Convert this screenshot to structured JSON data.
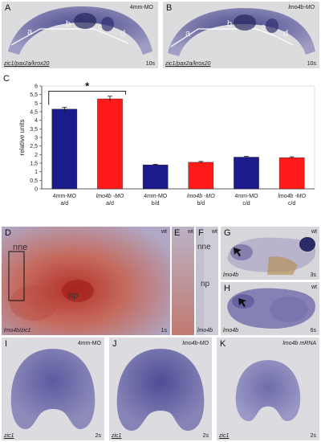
{
  "panels": {
    "A": {
      "letter": "A",
      "condition": "4mm-MO",
      "stain": "zic1/pax2a/krox20",
      "stage": "10s",
      "segments": [
        "a",
        "b",
        "c",
        "d"
      ]
    },
    "B": {
      "letter": "B",
      "condition": "lmo4b-MO",
      "stain": "zic1/pax2a/krox20",
      "stage": "10s",
      "segments": [
        "a",
        "b",
        "c",
        "d"
      ]
    },
    "C": {
      "letter": "C",
      "significance": "*"
    },
    "D": {
      "letter": "D",
      "genotype": "wt",
      "label_nne": "nne",
      "label_np": "np",
      "stain": "lmo4b/zic1",
      "stage": "1s"
    },
    "E": {
      "letter": "E",
      "genotype": "wt"
    },
    "F": {
      "letter": "F",
      "genotype": "wt",
      "label_nne": "nne",
      "label_np": "np",
      "stain": "lmo4b"
    },
    "G": {
      "letter": "G",
      "genotype": "wt",
      "stain": "lmo4b",
      "stage": "3s"
    },
    "H": {
      "letter": "H",
      "genotype": "wt",
      "stain": "lmo4b",
      "stage": "6s"
    },
    "I": {
      "letter": "I",
      "condition": "4mm-MO",
      "stain": "zic1",
      "stage": "2s"
    },
    "J": {
      "letter": "J",
      "condition": "lmo4b-MO",
      "stain": "zic1",
      "stage": "2s"
    },
    "K": {
      "letter": "K",
      "condition": "lmo4b mRNA",
      "stain": "zic1",
      "stage": "2s"
    }
  },
  "chart_data": {
    "type": "bar",
    "ylabel": "relative units",
    "ylim": [
      0,
      6
    ],
    "yticks": [
      "0",
      "0,5",
      "1",
      "1,5",
      "2",
      "2,5",
      "3",
      "3,5",
      "4",
      "4,5",
      "5",
      "5,5",
      "6"
    ],
    "categories": [
      {
        "morpholino": "4mm-MO",
        "ratio": "a/d"
      },
      {
        "morpholino": "lmo4b  -MO",
        "ratio": "a/d"
      },
      {
        "morpholino": "4mm-MO",
        "ratio": "b/d"
      },
      {
        "morpholino": "lmo4b  -MO",
        "ratio": "b/d"
      },
      {
        "morpholino": "4mm-MO",
        "ratio": "c/d"
      },
      {
        "morpholino": "lmo4b  -MO",
        "ratio": "c/d"
      }
    ],
    "values": [
      4.65,
      5.25,
      1.4,
      1.55,
      1.85,
      1.82
    ],
    "errors": [
      0.1,
      0.15,
      0.03,
      0.05,
      0.04,
      0.05
    ],
    "colors": [
      "#1b1b8c",
      "#ff1a1a",
      "#1b1b8c",
      "#ff1a1a",
      "#1b1b8c",
      "#ff1a1a"
    ],
    "significance": "*"
  }
}
